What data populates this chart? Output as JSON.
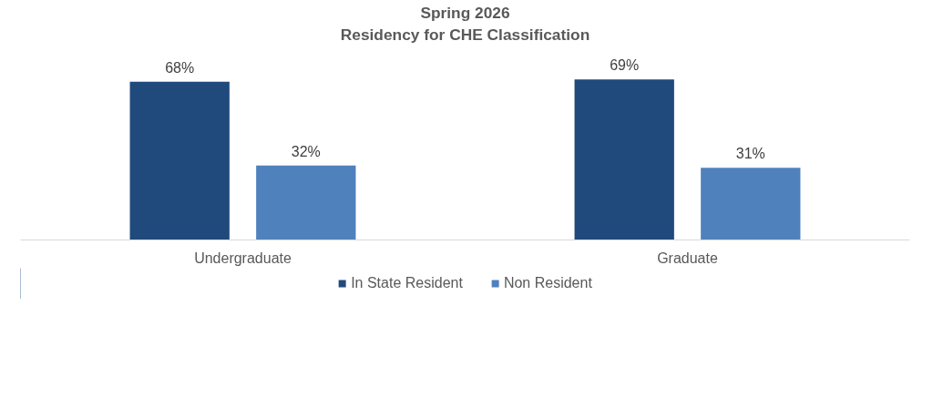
{
  "chart_data": {
    "type": "bar",
    "title": "Spring 2026",
    "subtitle": "Residency for CHE Classification",
    "categories": [
      "Undergraduate",
      "Graduate"
    ],
    "series": [
      {
        "name": "In State Resident",
        "color": "#204a7c",
        "values": [
          68,
          69
        ],
        "value_labels": [
          "68%",
          "69%"
        ]
      },
      {
        "name": "Non Resident",
        "color": "#4f81bd",
        "values": [
          32,
          31
        ],
        "value_labels": [
          "32%",
          "31%"
        ]
      }
    ],
    "legend": "bottom"
  }
}
